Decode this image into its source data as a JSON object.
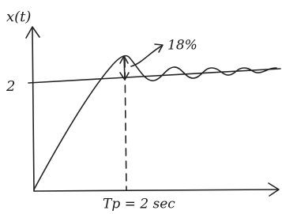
{
  "axes": {
    "y_label": "x(t)"
  },
  "labels": {
    "steady_value": "2",
    "overshoot": "18%",
    "peak_time": "Tp = 2 sec"
  }
}
